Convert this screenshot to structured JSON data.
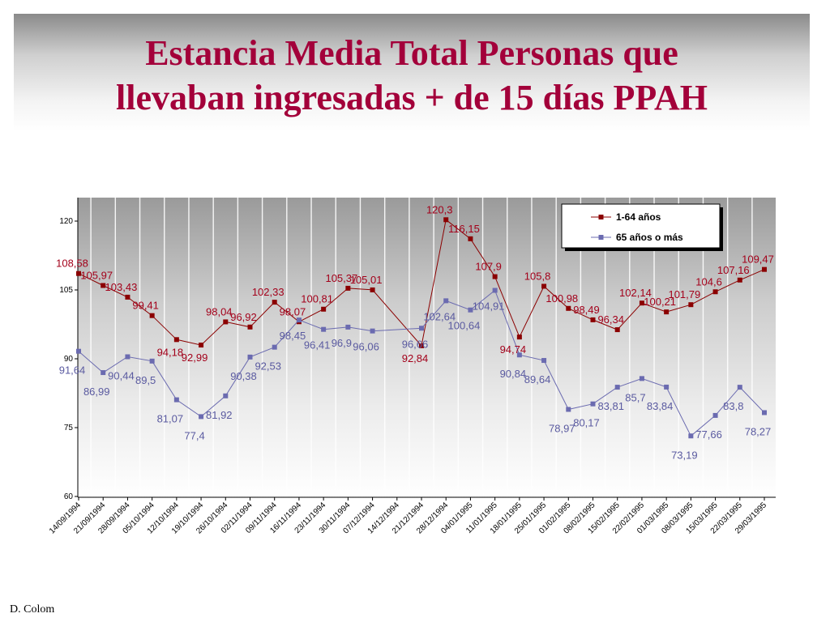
{
  "slide": {
    "title_line1": "Estancia Media Total Personas que",
    "title_line2": "llevaban ingresadas + de 15 días PPAH",
    "credit": "D. Colom"
  },
  "colors": {
    "title": "#a3003a",
    "series_1": "#8b0000",
    "series_2": "#6b6bb0",
    "series_1_label": "#a3001a",
    "series_2_label": "#5a5aa0"
  },
  "chart_data": {
    "type": "line",
    "title": "",
    "xlabel": "",
    "ylabel": "",
    "ylim": [
      60,
      125
    ],
    "yticks": [
      60,
      75,
      90,
      105,
      120
    ],
    "ytick_labels": [
      "60",
      "75",
      "90",
      "105",
      "120"
    ],
    "grid": false,
    "legend_position": "top-right",
    "categories": [
      "14/09/1994",
      "21/09/1994",
      "28/09/1994",
      "05/10/1994",
      "12/10/1994",
      "19/10/1994",
      "26/10/1994",
      "02/11/1994",
      "09/11/1994",
      "16/11/1994",
      "23/11/1994",
      "30/11/1994",
      "07/12/1994",
      "14/12/1994",
      "21/12/1994",
      "28/12/1994",
      "04/01/1995",
      "11/01/1995",
      "18/01/1995",
      "25/01/1995",
      "01/02/1995",
      "08/02/1995",
      "15/02/1995",
      "22/02/1995",
      "01/03/1995",
      "08/03/1995",
      "15/03/1995",
      "22/03/1995",
      "29/03/1995"
    ],
    "series": [
      {
        "name": "1-64 años",
        "values": [
          108.58,
          105.97,
          103.43,
          99.41,
          94.18,
          92.99,
          98.04,
          96.92,
          102.33,
          98.07,
          100.81,
          105.37,
          105.01,
          null,
          92.84,
          120.3,
          116.15,
          107.9,
          94.74,
          105.8,
          100.98,
          98.49,
          96.34,
          102.14,
          100.21,
          101.79,
          104.6,
          107.16,
          109.47
        ],
        "labels": [
          "108,58",
          "105,97",
          "103,43",
          "99,41",
          "94,18",
          "92,99",
          "98,04",
          "96,92",
          "102,33",
          "98,07",
          "100,81",
          "105,37",
          "105,01",
          "",
          "92,84",
          "120,3",
          "116,15",
          "107,9",
          "94,74",
          "105,8",
          "100,98",
          "98,49",
          "96,34",
          "102,14",
          "100,21",
          "101,79",
          "104,6",
          "107,16",
          "109,47"
        ]
      },
      {
        "name": "65 años o más",
        "values": [
          91.64,
          86.99,
          90.44,
          89.5,
          81.07,
          77.4,
          81.92,
          90.38,
          92.53,
          98.45,
          96.41,
          96.9,
          96.06,
          null,
          96.66,
          102.64,
          100.64,
          104.91,
          90.84,
          89.64,
          78.97,
          80.17,
          83.81,
          85.7,
          83.84,
          73.19,
          77.66,
          83.8,
          78.27
        ],
        "labels": [
          "91,64",
          "86,99",
          "90,44",
          "89,5",
          "81,07",
          "77,4",
          "81,92",
          "90,38",
          "92,53",
          "98,45",
          "96,41",
          "96,9",
          "96,06",
          "",
          "96,66",
          "102,64",
          "100,64",
          "104,91",
          "90,84",
          "89,64",
          "78,97",
          "80,17",
          "83,81",
          "85,7",
          "83,84",
          "73,19",
          "77,66",
          "83,8",
          "78,27"
        ]
      }
    ]
  }
}
